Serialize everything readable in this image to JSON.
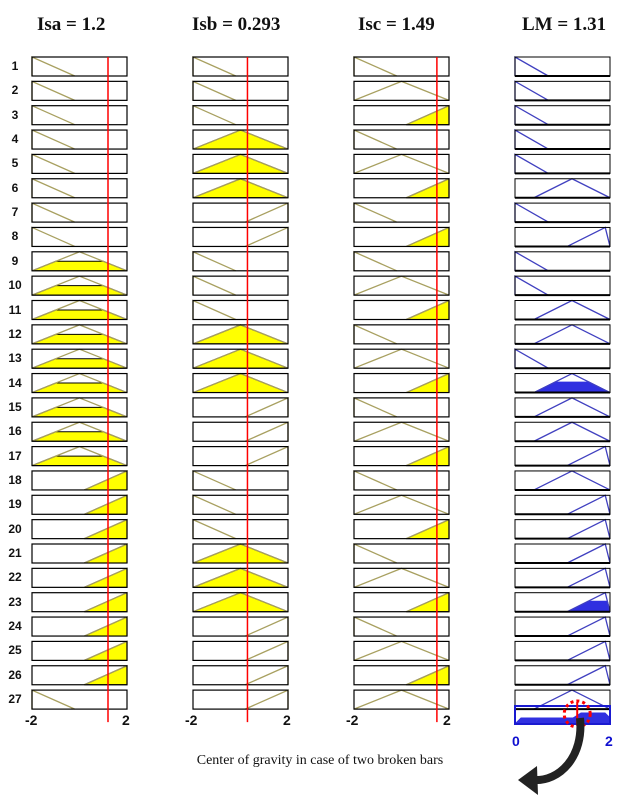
{
  "headers": [
    "Isa = 1.2",
    "Isb = 0.293",
    "Isc = 1.49",
    "LM = 1.31"
  ],
  "axis_min_label": "-2",
  "axis_max_label": "2",
  "lm_axis_min_label": "0",
  "lm_axis_max_label": "2",
  "caption": "Center of gravity in case of two broken bars",
  "colors": {
    "input_mf": "#a8a060",
    "input_fill": "#ffff00",
    "output_mf": "#4040c0",
    "output_fill": "#3030e0",
    "marker": "#ff0000",
    "centroid_circle": "#ff0000",
    "arrow": "#222222"
  },
  "icons": {
    "arrow": "curved-arrow-icon",
    "centroid": "dotted-circle-icon"
  },
  "inputs": [
    {
      "name": "Isa",
      "value": 1.2,
      "range": [
        -2,
        2
      ],
      "rule_mfs": [
        "low",
        "low",
        "low",
        "low",
        "low",
        "low",
        "low",
        "low",
        "med",
        "med",
        "med",
        "med",
        "med",
        "med",
        "med",
        "med",
        "med",
        "high",
        "high",
        "high",
        "high",
        "high",
        "high",
        "high",
        "high",
        "high",
        "low"
      ],
      "rule_fill": [
        0,
        0,
        0,
        0,
        0,
        0,
        0,
        0,
        0.5,
        0.5,
        0.5,
        0.5,
        0.5,
        0.5,
        0.5,
        0.5,
        0.5,
        1,
        1,
        1,
        1,
        1,
        1,
        1,
        1,
        1,
        0
      ]
    },
    {
      "name": "Isb",
      "value": 0.293,
      "range": [
        -2,
        2
      ],
      "rule_mfs": [
        "low",
        "low",
        "low",
        "med",
        "med",
        "med",
        "high",
        "high",
        "low",
        "low",
        "low",
        "med",
        "med",
        "med",
        "high",
        "high",
        "high",
        "low",
        "low",
        "low",
        "med",
        "med",
        "med",
        "high",
        "high",
        "high",
        "high"
      ],
      "rule_fill": [
        0,
        0,
        0,
        1,
        1,
        1,
        0,
        0,
        0,
        0,
        0,
        1,
        1,
        1,
        0,
        0,
        0,
        0,
        0,
        0,
        1,
        1,
        1,
        0,
        0,
        0,
        0
      ]
    },
    {
      "name": "Isc",
      "value": 1.49,
      "range": [
        -2,
        2
      ],
      "rule_mfs": [
        "low",
        "med",
        "high",
        "low",
        "med",
        "high",
        "low",
        "high",
        "low",
        "med",
        "high",
        "low",
        "med",
        "high",
        "low",
        "med",
        "high",
        "low",
        "med",
        "high",
        "low",
        "med",
        "high",
        "low",
        "med",
        "high",
        "med"
      ],
      "rule_fill": [
        0,
        0,
        1,
        0,
        0,
        1,
        0,
        1,
        0,
        0,
        1,
        0,
        0,
        1,
        0,
        0,
        1,
        0,
        0,
        1,
        0,
        0,
        1,
        0,
        0,
        1,
        0
      ]
    }
  ],
  "output": {
    "name": "LM",
    "value": 1.31,
    "range": [
      0,
      2
    ],
    "rule_mfs": [
      "z",
      "z",
      "z",
      "z",
      "z",
      "m",
      "z",
      "h",
      "z",
      "z",
      "m",
      "m",
      "z",
      "m",
      "m",
      "m",
      "h",
      "m",
      "h",
      "h",
      "h",
      "h",
      "h",
      "h",
      "h",
      "h",
      "m"
    ],
    "rule_fill": [
      0,
      0,
      0,
      0,
      0,
      0,
      0,
      0,
      0,
      0,
      0,
      0,
      0,
      1,
      0,
      0,
      0,
      0,
      0,
      0,
      0,
      0,
      1,
      0,
      0,
      0,
      0
    ]
  }
}
